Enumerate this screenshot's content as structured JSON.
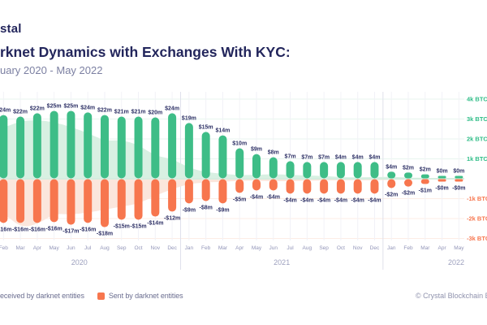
{
  "logo_text": "stal",
  "header": {
    "title": "rknet Dynamics with Exchanges With KYC:",
    "subtitle": "uary 2020 - May 2022"
  },
  "legend": {
    "received_label": "eceived by darknet entities",
    "sent_label": "Sent by darknet entities"
  },
  "footer": {
    "copyright": "© Crystal Blockchain B.V."
  },
  "colors": {
    "received": "#3EBD87",
    "sent": "#F7764E",
    "area_received": "#D8F0E2",
    "area_sent": "#FBE6DC",
    "grid_pos": "#E8F6EF",
    "grid_neg": "#FCEDE5",
    "grid_v": "#F2F2F7",
    "grid_year": "#E0E1EC",
    "zero_line": "#D5EDDF",
    "axis_pos_text": "#2FBD87",
    "axis_neg_text": "#F7764E",
    "label_text": "#2E3166"
  },
  "chart_data": {
    "type": "bar",
    "title": "rknet Dynamics with Exchanges With KYC:",
    "subtitle": "uary 2020 - May 2022",
    "categories": [
      "Feb 2020",
      "Mar 2020",
      "Apr 2020",
      "May 2020",
      "Jun 2020",
      "Jul 2020",
      "Aug 2020",
      "Sep 2020",
      "Oct 2020",
      "Nov 2020",
      "Dec 2020",
      "Jan 2021",
      "Feb 2021",
      "Mar 2021",
      "Apr 2021",
      "May 2021",
      "Jun 2021",
      "Jul 2021",
      "Aug 2021",
      "Sep 2021",
      "Oct 2021",
      "Nov 2021",
      "Dec 2021",
      "Jan 2022",
      "Feb 2022",
      "Mar 2022",
      "Apr 2022",
      "May 2022"
    ],
    "series": [
      {
        "name": "Received by darknet entities",
        "unit": "USD millions",
        "values": [
          24,
          22,
          22,
          25,
          25,
          24,
          22,
          21,
          21,
          20,
          24,
          19,
          15,
          14,
          10,
          9,
          8,
          7,
          7,
          7,
          4,
          4,
          4,
          4,
          2,
          2,
          0,
          0
        ],
        "labels": [
          "$24m",
          "$22m",
          "$22m",
          "$25m",
          "$25m",
          "$24m",
          "$22m",
          "$21m",
          "$21m",
          "$20m",
          "$24m",
          "$19m",
          "$15m",
          "$14m",
          "$10m",
          "$9m",
          "$8m",
          "$7m",
          "$7m",
          "$7m",
          "$4m",
          "$4m",
          "$4m",
          "$4m",
          "$2m",
          "$2m",
          "$0m",
          "$0m"
        ],
        "btc_k_est": [
          3.18,
          3.1,
          3.27,
          3.39,
          3.39,
          3.31,
          3.18,
          3.1,
          3.1,
          3.06,
          3.27,
          2.78,
          2.33,
          2.16,
          1.51,
          1.22,
          1.06,
          0.86,
          0.82,
          0.82,
          0.82,
          0.82,
          0.82,
          0.33,
          0.29,
          0.2,
          0.12,
          0.12
        ]
      },
      {
        "name": "Sent by darknet entities",
        "unit": "USD millions",
        "values": [
          -16,
          -16,
          -16,
          -16,
          -17,
          -16,
          -18,
          -15,
          -15,
          -14,
          -12,
          -9,
          -8,
          -9,
          -5,
          -4,
          -4,
          -4,
          -4,
          -4,
          -4,
          -4,
          -4,
          -2,
          -2,
          -1,
          0,
          0
        ],
        "labels": [
          "-$16m",
          "-$16m",
          "-$16m",
          "-$16m",
          "-$17m",
          "-$16m",
          "-$18m",
          "-$15m",
          "-$15m",
          "-$14m",
          "-$12m",
          "-$9m",
          "-$8m",
          "-$9m",
          "-$5m",
          "-$4m",
          "-$4m",
          "-$4m",
          "-$4m",
          "-$4m",
          "-$4m",
          "-$4m",
          "-$4m",
          "-$2m",
          "-$2m",
          "-$1m",
          "-$0m",
          "-$0m"
        ],
        "btc_k_est": [
          2.2,
          2.2,
          2.2,
          2.16,
          2.29,
          2.2,
          2.41,
          2.04,
          2.04,
          1.88,
          1.63,
          1.22,
          1.1,
          1.22,
          0.69,
          0.57,
          0.57,
          0.73,
          0.73,
          0.73,
          0.73,
          0.73,
          0.73,
          0.45,
          0.37,
          0.24,
          0.12,
          0.12
        ]
      }
    ],
    "areas": {
      "received_btc_k": [
        2.55,
        2.9,
        2.95,
        2.85,
        2.6,
        2.3,
        1.9,
        1.95,
        1.7,
        1.15,
        1.0,
        0.55,
        0.33,
        0.25,
        0.18,
        0.2,
        0.23,
        0.2,
        0.16,
        0.15,
        0.07,
        0.07,
        0.08,
        0.1,
        0.05,
        0.05,
        0.02,
        0.02
      ],
      "sent_btc_k": [
        1.7,
        2.45,
        2.3,
        1.75,
        1.8,
        1.7,
        1.55,
        1.4,
        1.25,
        0.85,
        0.52,
        0.26,
        0.18,
        0.16,
        0.09,
        0.09,
        0.12,
        0.12,
        0.09,
        0.09,
        0.07,
        0.07,
        0.08,
        0.05,
        0.05,
        0.02,
        0.01,
        0.01
      ],
      "left_edge_received": 2.7,
      "left_edge_sent": 2.0
    },
    "y_axis": {
      "unit": "BTC",
      "ticks": [
        {
          "label": "4k BTC",
          "value": 4
        },
        {
          "label": "3k BTC",
          "value": 3
        },
        {
          "label": "2k BTC",
          "value": 2
        },
        {
          "label": "1k BTC",
          "value": 1
        },
        {
          "label": "-1k BTC",
          "value": -1
        },
        {
          "label": "-2k BTC",
          "value": -2
        },
        {
          "label": "-3k BTC",
          "value": -3
        }
      ]
    },
    "x_axis": {
      "months": [
        "Feb",
        "Mar",
        "Apr",
        "May",
        "Jun",
        "Jul",
        "Aug",
        "Sep",
        "Oct",
        "Nov",
        "Dec",
        "Jan",
        "Feb",
        "Mar",
        "Apr",
        "May",
        "Jun",
        "Jul",
        "Aug",
        "Sep",
        "Oct",
        "Nov",
        "Dec",
        "Jan",
        "Feb",
        "Mar",
        "Apr",
        "May"
      ],
      "years": [
        "2020",
        "2021",
        "2022"
      ]
    }
  }
}
